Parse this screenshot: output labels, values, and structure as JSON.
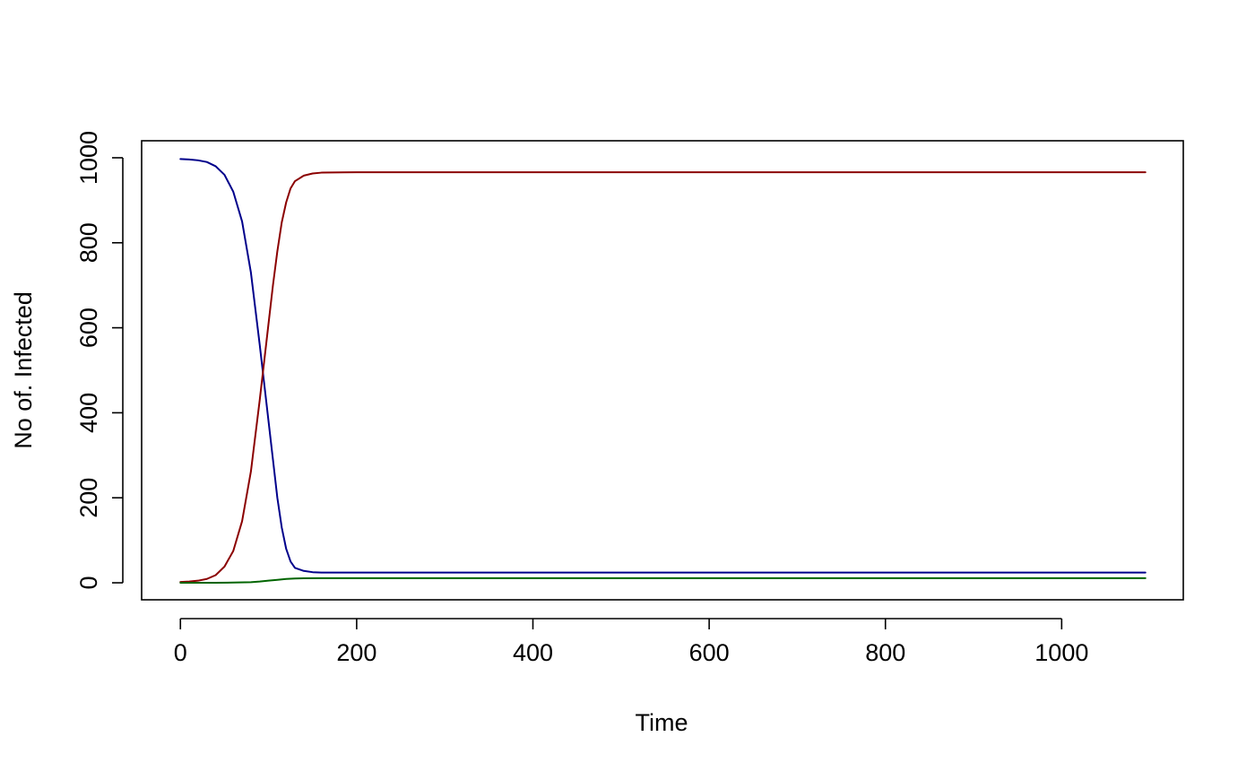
{
  "chart_data": {
    "type": "line",
    "title": "",
    "xlabel": "Time",
    "ylabel": "No of. Infected",
    "xlim": [
      -44,
      1138
    ],
    "ylim": [
      -40,
      1040
    ],
    "x_ticks": [
      0,
      200,
      400,
      600,
      800,
      1000
    ],
    "x_tick_labels": [
      "0",
      "200",
      "400",
      "600",
      "800",
      "1000"
    ],
    "y_ticks": [
      0,
      200,
      400,
      600,
      800,
      1000
    ],
    "y_tick_labels": [
      "0",
      "200",
      "400",
      "600",
      "800",
      "1000"
    ],
    "grid": false,
    "legend": "none",
    "series": [
      {
        "color": "#00008b",
        "x": [
          0,
          10,
          20,
          30,
          40,
          50,
          60,
          70,
          80,
          90,
          95,
          100,
          105,
          110,
          115,
          120,
          125,
          130,
          140,
          150,
          160,
          200,
          400,
          600,
          800,
          1000,
          1095
        ],
        "y": [
          997,
          996,
          994,
          990,
          980,
          960,
          920,
          850,
          730,
          560,
          470,
          380,
          290,
          200,
          130,
          80,
          50,
          35,
          28,
          25,
          24,
          24,
          24,
          24,
          24,
          24,
          24
        ]
      },
      {
        "color": "#8b0000",
        "x": [
          0,
          10,
          20,
          30,
          40,
          50,
          60,
          70,
          80,
          90,
          95,
          100,
          105,
          110,
          115,
          120,
          125,
          130,
          140,
          150,
          160,
          200,
          400,
          600,
          800,
          1000,
          1095
        ],
        "y": [
          2,
          3,
          5,
          9,
          18,
          38,
          75,
          145,
          262,
          430,
          520,
          610,
          700,
          780,
          848,
          895,
          928,
          945,
          958,
          963,
          965,
          966,
          966,
          966,
          966,
          966,
          966
        ]
      },
      {
        "color": "#006400",
        "x": [
          0,
          20,
          40,
          60,
          80,
          90,
          100,
          110,
          120,
          130,
          140,
          160,
          200,
          400,
          600,
          800,
          1000,
          1095
        ],
        "y": [
          0,
          0,
          0.2,
          0.5,
          1.5,
          3,
          5,
          7,
          9,
          10,
          10.5,
          10.8,
          11,
          11,
          11,
          11,
          11,
          11
        ]
      }
    ]
  }
}
